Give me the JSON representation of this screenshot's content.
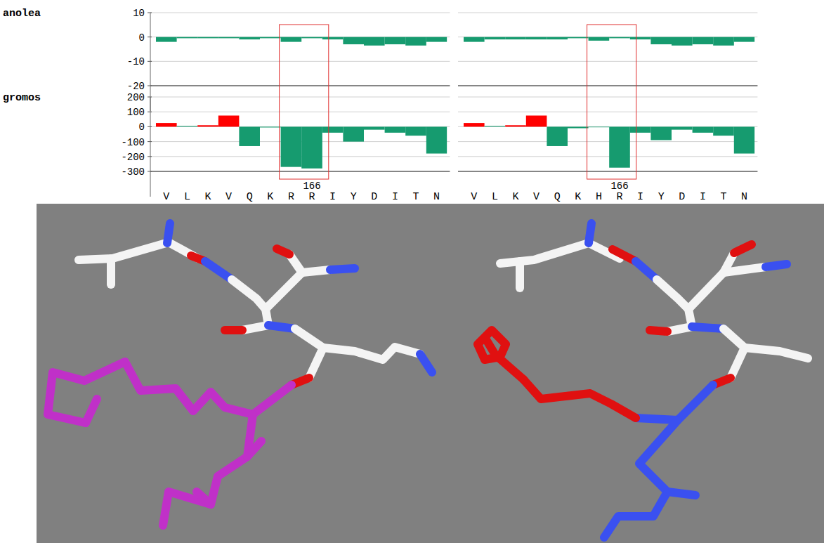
{
  "chart_data": [
    {
      "type": "bar",
      "title": "anolea",
      "ylim": [
        -20,
        10
      ],
      "yticks": [
        10,
        0,
        -10,
        -20
      ],
      "grid": true,
      "tick_labels": "y",
      "series": [
        {
          "values": [
            -2,
            -0.5,
            -0.5,
            -0.5,
            -1,
            -0.5,
            -2,
            -0.5,
            -1,
            -3,
            -3.5,
            -3,
            -3.5,
            -2
          ],
          "colors": [
            "#169b6f",
            "#169b6f",
            "#169b6f",
            "#169b6f",
            "#169b6f",
            "#169b6f",
            "#169b6f",
            "#169b6f",
            "#169b6f",
            "#169b6f",
            "#169b6f",
            "#169b6f",
            "#169b6f",
            "#169b6f"
          ]
        }
      ]
    },
    {
      "type": "bar",
      "ylim": [
        -20,
        10
      ],
      "yticks": [
        10,
        0,
        -10,
        -20
      ],
      "grid": true,
      "tick_labels": false,
      "series": [
        {
          "values": [
            -2,
            -1,
            -1,
            -1,
            -1,
            -0.5,
            -1.5,
            -0.5,
            -1,
            -3,
            -3.5,
            -3,
            -3.5,
            -2
          ],
          "colors": [
            "#169b6f",
            "#169b6f",
            "#169b6f",
            "#169b6f",
            "#169b6f",
            "#169b6f",
            "#169b6f",
            "#169b6f",
            "#169b6f",
            "#169b6f",
            "#169b6f",
            "#169b6f",
            "#169b6f",
            "#169b6f"
          ]
        }
      ]
    },
    {
      "type": "bar",
      "title": "gromos",
      "ylim": [
        -300,
        200
      ],
      "yticks": [
        200,
        100,
        0,
        -100,
        -200,
        -300
      ],
      "grid": true,
      "tick_labels": true,
      "categories": [
        "V",
        "L",
        "K",
        "V",
        "Q",
        "K",
        "R",
        "R",
        "I",
        "Y",
        "D",
        "I",
        "T",
        "N"
      ],
      "annotations": [
        {
          "text": "166",
          "index": 7
        }
      ],
      "series": [
        {
          "values": [
            25,
            5,
            10,
            75,
            -130,
            -5,
            -270,
            -280,
            -40,
            -100,
            -20,
            -40,
            -60,
            -180
          ],
          "colors": [
            "#ff0000",
            "#169b6f",
            "#ff0000",
            "#ff0000",
            "#169b6f",
            "#169b6f",
            "#169b6f",
            "#169b6f",
            "#169b6f",
            "#169b6f",
            "#169b6f",
            "#169b6f",
            "#169b6f",
            "#169b6f"
          ]
        }
      ]
    },
    {
      "type": "bar",
      "ylim": [
        -300,
        200
      ],
      "yticks": [
        200,
        100,
        0,
        -100,
        -200,
        -300
      ],
      "grid": true,
      "tick_labels": "x",
      "categories": [
        "V",
        "L",
        "K",
        "V",
        "Q",
        "K",
        "H",
        "R",
        "I",
        "Y",
        "D",
        "I",
        "T",
        "N"
      ],
      "annotations": [
        {
          "text": "166",
          "index": 7
        }
      ],
      "series": [
        {
          "values": [
            25,
            5,
            10,
            75,
            -130,
            -10,
            0,
            -275,
            -40,
            -90,
            -20,
            -40,
            -60,
            -180
          ],
          "colors": [
            "#ff0000",
            "#169b6f",
            "#ff0000",
            "#ff0000",
            "#169b6f",
            "#169b6f",
            "#169b6f",
            "#169b6f",
            "#169b6f",
            "#169b6f",
            "#169b6f",
            "#169b6f",
            "#169b6f",
            "#169b6f"
          ]
        }
      ]
    }
  ]
}
